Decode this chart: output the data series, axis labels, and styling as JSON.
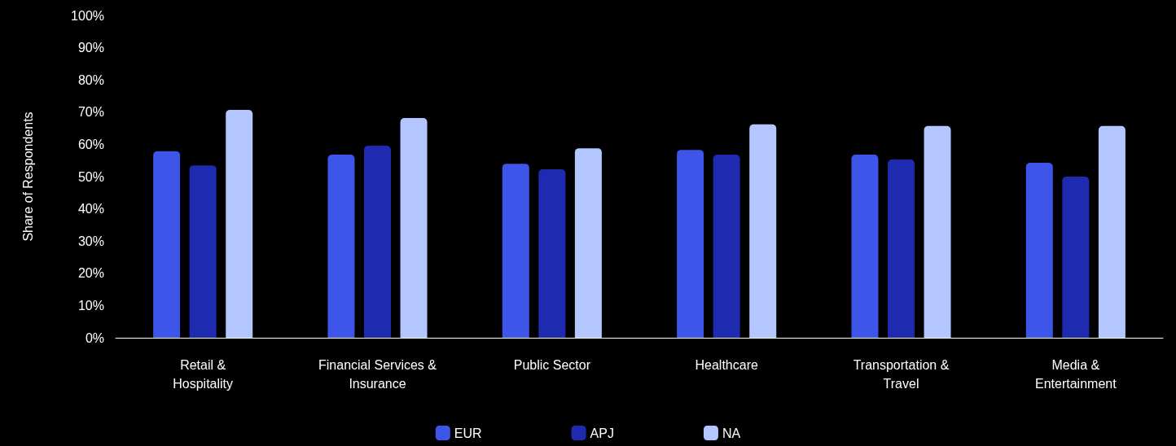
{
  "chart_data": {
    "type": "bar",
    "ylabel": "Share of Respondents",
    "categories": [
      "Retail &\nHospitality",
      "Financial Services &\nInsurance",
      "Public Sector",
      "Healthcare",
      "Transportation &\nTravel",
      "Media &\nEntertainment"
    ],
    "series": [
      {
        "name": "EUR",
        "color": "#3d55e8",
        "values": [
          57.9,
          56.8,
          54,
          58.3,
          56.8,
          54.3
        ]
      },
      {
        "name": "APJ",
        "color": "#1e2bb0",
        "values": [
          53.5,
          59.6,
          52.3,
          56.8,
          55.3,
          50
        ]
      },
      {
        "name": "NA",
        "color": "#b3c6ff",
        "values": [
          70.7,
          68.2,
          58.8,
          66.2,
          65.7,
          65.7
        ]
      }
    ],
    "ylim": [
      0,
      100
    ],
    "yticks": [
      {
        "value": 0,
        "label": "0%"
      },
      {
        "value": 10,
        "label": "10%"
      },
      {
        "value": 20,
        "label": "20%"
      },
      {
        "value": 30,
        "label": "30%"
      },
      {
        "value": 40,
        "label": "40%"
      },
      {
        "value": 50,
        "label": "50%"
      },
      {
        "value": 60,
        "label": "60%"
      },
      {
        "value": 70,
        "label": "70%"
      },
      {
        "value": 80,
        "label": "80%"
      },
      {
        "value": 90,
        "label": "90%"
      },
      {
        "value": 100,
        "label": "100%"
      }
    ],
    "grid": false,
    "legend": "bottom"
  }
}
